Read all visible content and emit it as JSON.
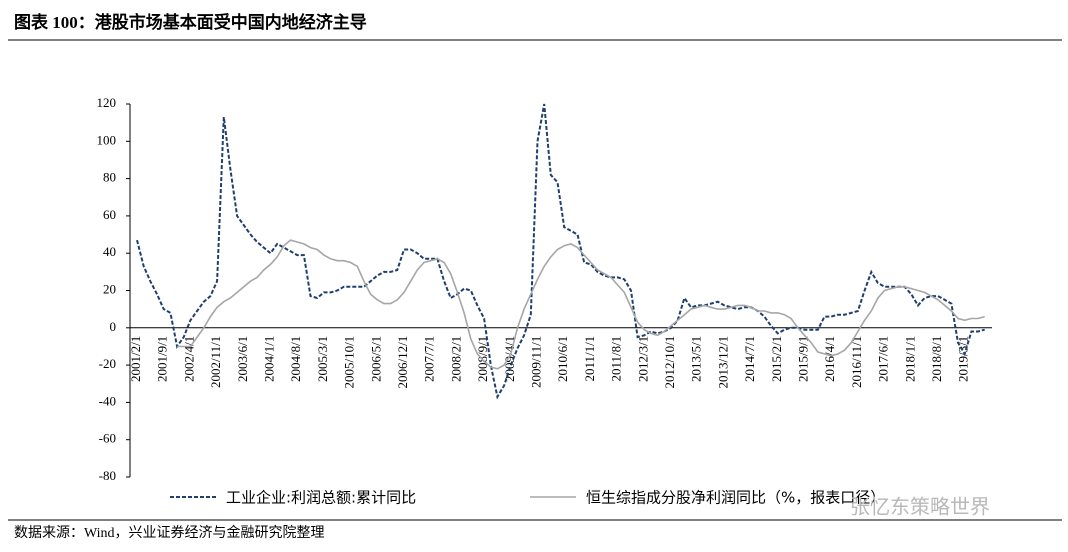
{
  "chart_data": {
    "type": "line",
    "title": "图表 100：港股市场基本面受中国内地经济主导",
    "source": "数据来源：Wind，兴业证券经济与金融研究院整理",
    "watermark": "张忆东策略世界",
    "ylim": [
      -80,
      120
    ],
    "yticks": [
      -80,
      -60,
      -40,
      -20,
      0,
      20,
      40,
      60,
      80,
      100,
      120
    ],
    "grid": false,
    "categories": [
      "2001/2/1",
      null,
      null,
      null,
      "2001/9/1",
      null,
      null,
      null,
      "2002/4/1",
      null,
      null,
      null,
      "2002/11/1",
      null,
      null,
      null,
      "2003/6/1",
      null,
      null,
      null,
      "2004/1/1",
      null,
      null,
      null,
      "2004/8/1",
      null,
      null,
      null,
      "2005/3/1",
      null,
      null,
      null,
      "2005/10/1",
      null,
      null,
      null,
      "2006/5/1",
      null,
      null,
      null,
      "2006/12/1",
      null,
      null,
      null,
      "2007/7/1",
      null,
      null,
      null,
      "2008/2/1",
      null,
      null,
      null,
      "2008/9/1",
      null,
      null,
      null,
      "2009/4/1",
      null,
      null,
      null,
      "2009/11/1",
      null,
      null,
      null,
      "2010/6/1",
      null,
      null,
      null,
      "2011/1/1",
      null,
      null,
      null,
      "2011/8/1",
      null,
      null,
      null,
      "2012/3/1",
      null,
      null,
      null,
      "2012/10/1",
      null,
      null,
      null,
      "2013/5/1",
      null,
      null,
      null,
      "2013/12/1",
      null,
      null,
      null,
      "2014/7/1",
      null,
      null,
      null,
      "2015/2/1",
      null,
      null,
      null,
      "2015/9/1",
      null,
      null,
      null,
      "2016/4/1",
      null,
      null,
      null,
      "2016/11/1",
      null,
      null,
      null,
      "2017/6/1",
      null,
      null,
      null,
      "2018/1/1",
      null,
      null,
      null,
      "2018/8/1",
      null,
      null,
      null,
      "2019/3/1",
      null,
      null,
      null
    ],
    "series": [
      {
        "name": "工业企业:利润总额:累计同比",
        "color": "#1f3f6e",
        "style": "dashed",
        "values": [
          47,
          33,
          25,
          18,
          10,
          8,
          -10,
          -5,
          4,
          9,
          14,
          17,
          25,
          113,
          85,
          60,
          55,
          50,
          46,
          43,
          40,
          45,
          43,
          41,
          39,
          39,
          17,
          16,
          19,
          19,
          20,
          22,
          22,
          22,
          22,
          25,
          28,
          30,
          30,
          31,
          42,
          42,
          40,
          37,
          37,
          37,
          25,
          16,
          18,
          21,
          20,
          12,
          5,
          -20,
          -37,
          -31,
          -20,
          -11,
          -4,
          7,
          100,
          120,
          82,
          78,
          54,
          52,
          50,
          35,
          34,
          30,
          28,
          27,
          27,
          26,
          20,
          -5,
          -4,
          -2,
          -3,
          -2,
          0,
          4,
          16,
          11,
          12,
          12,
          13,
          14,
          12,
          11,
          10,
          11,
          11,
          9,
          6,
          1,
          -3,
          -1,
          0,
          0,
          -1,
          -1,
          -1,
          6,
          6,
          7,
          7,
          8,
          9,
          20,
          30,
          24,
          22,
          22,
          22,
          22,
          18,
          12,
          16,
          17,
          17,
          15,
          13,
          -8,
          -14,
          -2,
          -2,
          -1
        ]
      },
      {
        "name": "恒生综指成分股净利润同比（%，报表口径）",
        "color": "#a6a6a6",
        "style": "solid",
        "values": [
          null,
          null,
          null,
          null,
          null,
          null,
          -10,
          -10,
          -10,
          -5,
          0,
          6,
          11,
          14,
          16,
          19,
          22,
          25,
          27,
          31,
          34,
          38,
          44,
          47,
          46,
          45,
          43,
          42,
          39,
          37,
          36,
          36,
          35,
          33,
          25,
          18,
          15,
          13,
          13,
          15,
          19,
          25,
          31,
          35,
          36,
          37,
          35,
          29,
          19,
          8,
          -6,
          -14,
          -18,
          -21,
          -22,
          -20,
          -14,
          0,
          10,
          18,
          26,
          33,
          38,
          42,
          44,
          45,
          43,
          39,
          35,
          31,
          29,
          27,
          23,
          19,
          11,
          3,
          -1,
          -3,
          -4,
          -2,
          1,
          4,
          7,
          10,
          11,
          12,
          11,
          10,
          10,
          11,
          12,
          12,
          11,
          9,
          9,
          8,
          8,
          7,
          5,
          0,
          -4,
          -8,
          -13,
          -14,
          -15,
          -14,
          -12,
          -8,
          -2,
          4,
          9,
          16,
          20,
          21,
          22,
          22,
          21,
          20,
          19,
          17,
          15,
          12,
          9,
          5,
          4,
          5,
          5,
          6
        ]
      }
    ]
  }
}
